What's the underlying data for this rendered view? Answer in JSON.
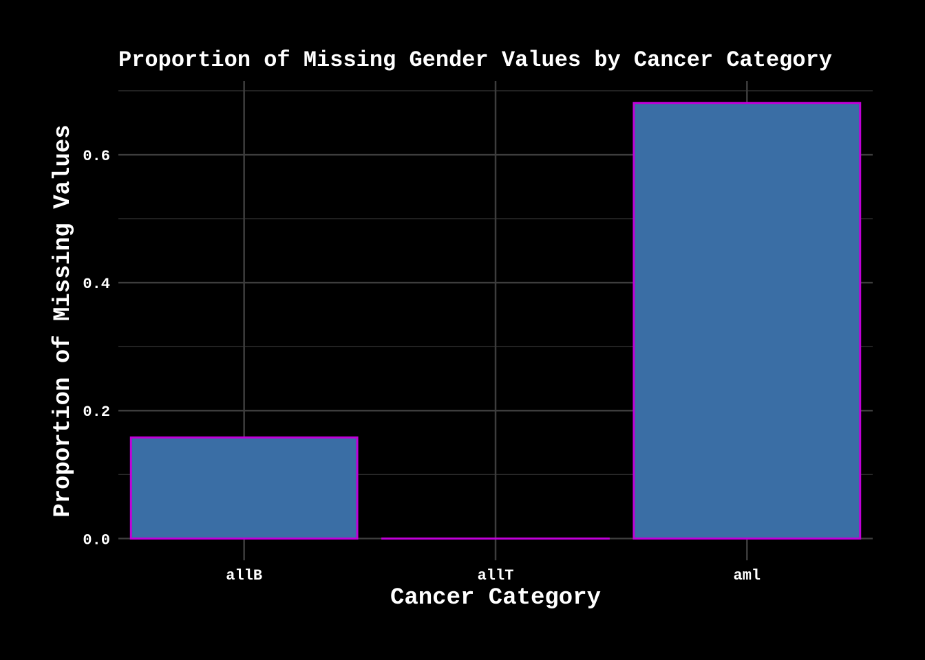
{
  "chart_data": {
    "type": "bar",
    "title": "Proportion of Missing Gender Values by Cancer Category",
    "xlabel": "Cancer Category",
    "ylabel": "Proportion of Missing Values",
    "categories": [
      "allB",
      "allT",
      "aml"
    ],
    "values": [
      0.158,
      0.0,
      0.681
    ],
    "ylim": [
      -0.0341,
      0.7151
    ],
    "yticks": [
      0.0,
      0.2,
      0.4,
      0.6
    ],
    "ytick_labels": [
      "0.0",
      "0.2",
      "0.4",
      "0.6"
    ],
    "grid": true,
    "legend": "none",
    "colors": {
      "background": "#000000",
      "bar_fill": "#3a6ea5",
      "bar_outline": "#c000d8",
      "grid": "#3d3d3d",
      "text": "#ffffff"
    }
  }
}
